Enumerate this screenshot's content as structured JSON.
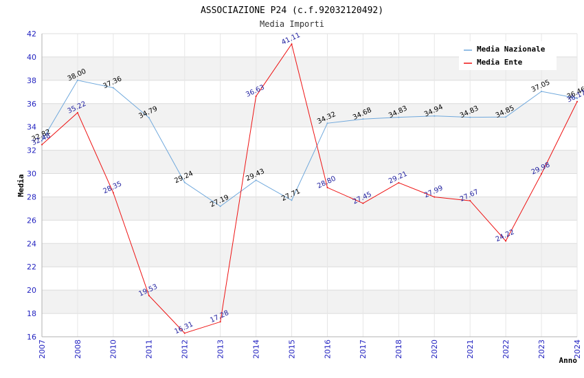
{
  "chart_data": {
    "type": "line",
    "title": "ASSOCIAZIONE P24 (c.f.92032120492)",
    "subtitle": "Media Importi",
    "xlabel": "Anno",
    "ylabel": "Media",
    "ylim": [
      16,
      42
    ],
    "yticks": [
      "16",
      "18",
      "20",
      "22",
      "24",
      "26",
      "28",
      "30",
      "32",
      "34",
      "36",
      "38",
      "40",
      "42"
    ],
    "categories": [
      "2007",
      "2008",
      "2010",
      "2011",
      "2012",
      "2013",
      "2014",
      "2015",
      "2016",
      "2017",
      "2018",
      "2020",
      "2021",
      "2022",
      "2023",
      "2024"
    ],
    "grid": true,
    "legend_position": "top-right",
    "series": [
      {
        "name": "Media Nazionale",
        "color": "#6fa8dc",
        "label_color": "#000000",
        "values": [
          32.82,
          38.0,
          37.36,
          34.79,
          29.24,
          27.19,
          29.43,
          27.71,
          34.32,
          34.68,
          34.83,
          34.94,
          34.83,
          34.85,
          37.05,
          36.46
        ],
        "labels": [
          "32.82",
          "38.00",
          "37.36",
          "34.79",
          "29.24",
          "27.19",
          "29.43",
          "27.71",
          "34.32",
          "34.68",
          "34.83",
          "34.94",
          "34.83",
          "34.85",
          "37.05",
          "36.46"
        ]
      },
      {
        "name": "Media Ente",
        "color": "#ee1111",
        "label_color": "#1f1f9f",
        "values": [
          32.48,
          35.22,
          28.35,
          19.53,
          16.31,
          17.28,
          36.63,
          41.11,
          28.8,
          27.45,
          29.21,
          27.99,
          27.67,
          24.22,
          29.98,
          36.17
        ],
        "labels": [
          "32.48",
          "35.22",
          "28.35",
          "19.53",
          "16.31",
          "17.28",
          "36.63",
          "41.11",
          "28.80",
          "27.45",
          "29.21",
          "27.99",
          "27.67",
          "24.22",
          "29.98",
          "36.17"
        ]
      }
    ]
  }
}
